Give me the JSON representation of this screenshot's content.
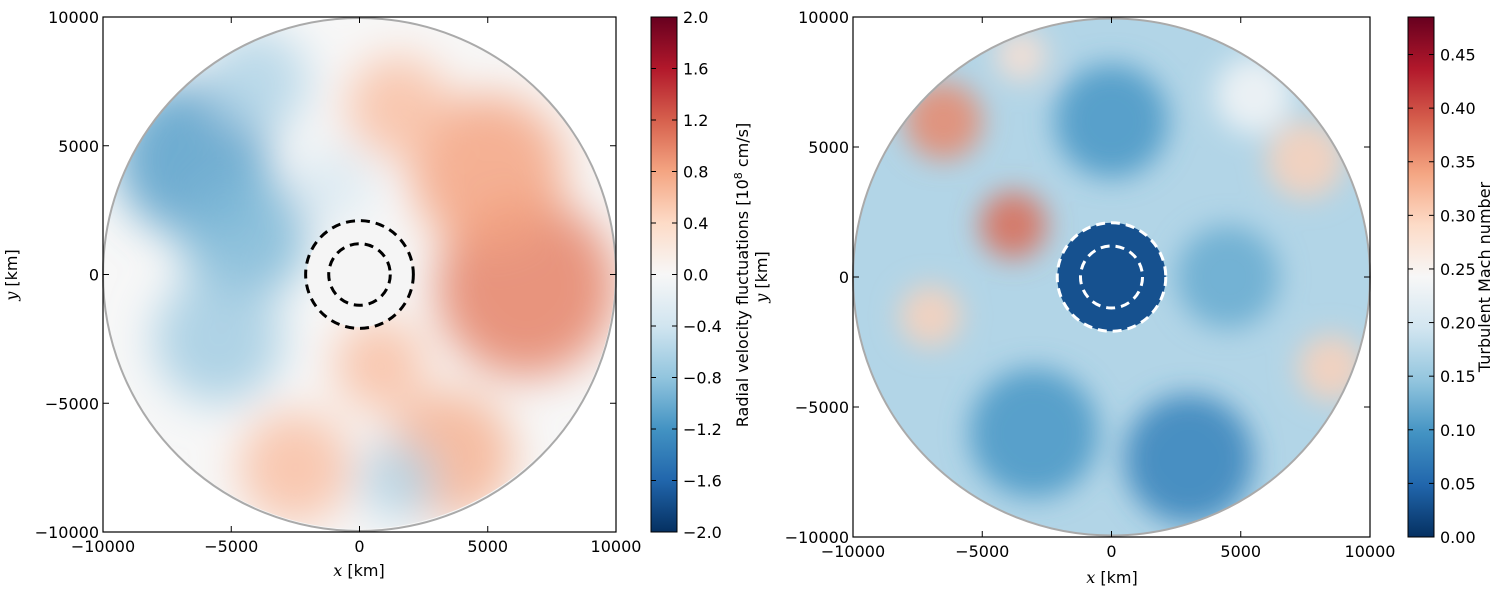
{
  "chart_data": [
    {
      "type": "heatmap",
      "title": "",
      "xlabel_var": "x",
      "xlabel_unit": " [km]",
      "ylabel_var": "y",
      "ylabel_unit": " [km]",
      "xlim": [
        -10000,
        10000
      ],
      "ylim": [
        -10000,
        10000
      ],
      "xticks": [
        -10000,
        -5000,
        0,
        5000,
        10000
      ],
      "yticks": [
        -10000,
        -5000,
        0,
        5000,
        10000
      ],
      "domain_radius": 10000,
      "inner_dashed_circle_radii": [
        1200,
        2100
      ],
      "dashed_circle_color": "#000000",
      "colorbar": {
        "label_pre": "Radial velocity fluctuations [10",
        "label_exp": "8",
        "label_post": " cm/s]",
        "range": [
          -2.0,
          2.0
        ],
        "ticks": [
          "2.0",
          "1.6",
          "1.2",
          "0.8",
          "0.4",
          "0.0",
          "−0.4",
          "−0.8",
          "−1.2",
          "−1.6",
          "−2.0"
        ],
        "tick_values": [
          2.0,
          1.6,
          1.2,
          0.8,
          0.4,
          0.0,
          -0.4,
          -0.8,
          -1.2,
          -1.6,
          -2.0
        ],
        "colormap": "RdBu_r"
      },
      "colors": {
        "low": "#053061",
        "mid": "#f7f7f7",
        "high": "#67001f"
      },
      "field_blobs": [
        {
          "x": 6500,
          "y": -500,
          "v": 1.0,
          "r": 3500
        },
        {
          "x": 5000,
          "y": 4000,
          "v": 0.8,
          "r": 3000
        },
        {
          "x": 3500,
          "y": -7000,
          "v": 0.7,
          "r": 2500
        },
        {
          "x": -2500,
          "y": -7500,
          "v": 0.6,
          "r": 2200
        },
        {
          "x": 1500,
          "y": 6500,
          "v": 0.6,
          "r": 2000
        },
        {
          "x": 800,
          "y": -3500,
          "v": 0.6,
          "r": 1800
        },
        {
          "x": -6500,
          "y": 4500,
          "v": -1.1,
          "r": 3000
        },
        {
          "x": -4500,
          "y": 1500,
          "v": -0.9,
          "r": 2500
        },
        {
          "x": -5500,
          "y": -2500,
          "v": -0.7,
          "r": 2500
        },
        {
          "x": -4000,
          "y": 7500,
          "v": -0.6,
          "r": 2000
        },
        {
          "x": 1500,
          "y": -8000,
          "v": -0.6,
          "r": 1500
        },
        {
          "x": -1000,
          "y": 3500,
          "v": -0.3,
          "r": 1500
        }
      ]
    },
    {
      "type": "heatmap",
      "title": "",
      "xlabel_var": "x",
      "xlabel_unit": " [km]",
      "ylabel_var": "y",
      "ylabel_unit": " [km]",
      "xlim": [
        -10000,
        10000
      ],
      "ylim": [
        -10000,
        10000
      ],
      "xticks": [
        -10000,
        -5000,
        0,
        5000,
        10000
      ],
      "yticks": [
        -10000,
        -5000,
        0,
        5000,
        10000
      ],
      "domain_radius": 10000,
      "inner_dashed_circle_radii": [
        1200,
        2100
      ],
      "dashed_circle_color": "#ffffff",
      "inner_core": {
        "radius": 2100,
        "value": 0.03
      },
      "colorbar": {
        "label": "Turbulent Mach number",
        "range": [
          0.0,
          0.485
        ],
        "ticks": [
          "0.45",
          "0.40",
          "0.35",
          "0.30",
          "0.25",
          "0.20",
          "0.15",
          "0.10",
          "0.05",
          "0.00"
        ],
        "tick_values": [
          0.45,
          0.4,
          0.35,
          0.3,
          0.25,
          0.2,
          0.15,
          0.1,
          0.05,
          0.0
        ],
        "colormap": "RdBu_r"
      },
      "colors": {
        "low": "#053061",
        "mid": "#f7f7f7",
        "high": "#67001f"
      },
      "field_blobs": [
        {
          "x": -6500,
          "y": 6000,
          "v": 0.36,
          "r": 1500
        },
        {
          "x": -3800,
          "y": 2000,
          "v": 0.38,
          "r": 1300
        },
        {
          "x": -7000,
          "y": -1500,
          "v": 0.3,
          "r": 1200
        },
        {
          "x": 7500,
          "y": 4500,
          "v": 0.3,
          "r": 1500
        },
        {
          "x": 8500,
          "y": -3500,
          "v": 0.3,
          "r": 1300
        },
        {
          "x": -3500,
          "y": 8500,
          "v": 0.28,
          "r": 1000
        },
        {
          "x": 5500,
          "y": 7000,
          "v": 0.24,
          "r": 1500
        },
        {
          "x": 3000,
          "y": -7000,
          "v": 0.08,
          "r": 2500
        },
        {
          "x": -3000,
          "y": -6000,
          "v": 0.1,
          "r": 2500
        },
        {
          "x": 0,
          "y": 6000,
          "v": 0.1,
          "r": 2200
        },
        {
          "x": 4500,
          "y": 0,
          "v": 0.12,
          "r": 2000
        }
      ]
    }
  ]
}
